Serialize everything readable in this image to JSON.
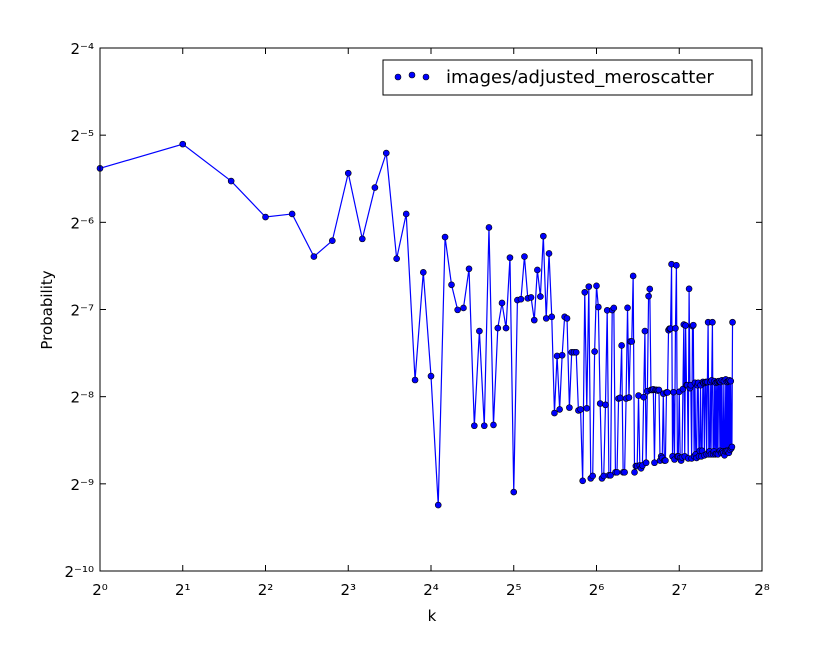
{
  "chart_data": {
    "type": "line",
    "xlabel": "k",
    "ylabel": "Probability",
    "xscale": "log",
    "yscale": "log",
    "log_base": 2,
    "xlim": [
      1,
      256
    ],
    "ylim": [
      0.0009765625,
      0.0625
    ],
    "xticks": [
      {
        "value": 1,
        "label": "2⁰"
      },
      {
        "value": 2,
        "label": "2¹"
      },
      {
        "value": 4,
        "label": "2²"
      },
      {
        "value": 8,
        "label": "2³"
      },
      {
        "value": 16,
        "label": "2⁴"
      },
      {
        "value": 32,
        "label": "2⁵"
      },
      {
        "value": 64,
        "label": "2⁶"
      },
      {
        "value": 128,
        "label": "2⁷"
      },
      {
        "value": 256,
        "label": "2⁸"
      }
    ],
    "yticks": [
      {
        "value": 0.0009765625,
        "label": "2⁻¹⁰"
      },
      {
        "value": 0.001953125,
        "label": "2⁻⁹"
      },
      {
        "value": 0.00390625,
        "label": "2⁻⁸"
      },
      {
        "value": 0.0078125,
        "label": "2⁻⁷"
      },
      {
        "value": 0.015625,
        "label": "2⁻⁶"
      },
      {
        "value": 0.03125,
        "label": "2⁻⁵"
      },
      {
        "value": 0.0625,
        "label": "2⁻⁴"
      }
    ],
    "legend": "upper right",
    "series": [
      {
        "name": "images/adjusted_meroscatter",
        "color": "#0000ff",
        "x": [
          1,
          2,
          3,
          4,
          5,
          6,
          7,
          8,
          9,
          10,
          11,
          12,
          13,
          14,
          15,
          16,
          17,
          18,
          19,
          20,
          21,
          22,
          23,
          24,
          25,
          26,
          27,
          28,
          29,
          30,
          31,
          32,
          33,
          34,
          35,
          36,
          37,
          38,
          39,
          40,
          41,
          42,
          43,
          44,
          45,
          46,
          47,
          48,
          49,
          50,
          51,
          52,
          53,
          54,
          55,
          56,
          57,
          58,
          59,
          60,
          61,
          62,
          63,
          64,
          65,
          66,
          67,
          68,
          69,
          70,
          71,
          72,
          73,
          74,
          75,
          76,
          77,
          78,
          79,
          80,
          81,
          82,
          83,
          84,
          85,
          86,
          87,
          88,
          89,
          90,
          91,
          92,
          93,
          94,
          95,
          96,
          97,
          98,
          99,
          100,
          101,
          102,
          103,
          104,
          105,
          106,
          107,
          108,
          109,
          110,
          111,
          112,
          113,
          114,
          115,
          116,
          117,
          118,
          119,
          120,
          121,
          122,
          123,
          124,
          125,
          126,
          127,
          128,
          129,
          130,
          131,
          132,
          133,
          134,
          135,
          136,
          137,
          138,
          139,
          140,
          141,
          142,
          143,
          144,
          145,
          146,
          147,
          148,
          149,
          150,
          151,
          152,
          153,
          154,
          155,
          156,
          157,
          158,
          159,
          160,
          161,
          162,
          163,
          164,
          165,
          166,
          167,
          168,
          169,
          170,
          171,
          172,
          173,
          174,
          175,
          176,
          177,
          178,
          179,
          180,
          181,
          182,
          183,
          184,
          185,
          186,
          187,
          188,
          189,
          190,
          191,
          192,
          193,
          194,
          195,
          196,
          197,
          198,
          199,
          200
        ],
        "values": [
          0.024,
          0.0291,
          0.0217,
          0.0163,
          0.0167,
          0.0119,
          0.0135,
          0.0231,
          0.0137,
          0.0206,
          0.0271,
          0.0117,
          0.0167,
          0.00446,
          0.0105,
          0.0046,
          0.00165,
          0.0139,
          0.00951,
          0.00779,
          0.00791,
          0.0108,
          0.0031,
          0.00658,
          0.0031,
          0.015,
          0.00312,
          0.00674,
          0.00823,
          0.00674,
          0.0118,
          0.00183,
          0.00842,
          0.00848,
          0.0119,
          0.00854,
          0.0086,
          0.00718,
          0.0107,
          0.00866,
          0.014,
          0.00728,
          0.0122,
          0.00737,
          0.00343,
          0.0054,
          0.00353,
          0.00543,
          0.00737,
          0.00728,
          0.00358,
          0.00556,
          0.00556,
          0.00556,
          0.0035,
          0.00353,
          0.002,
          0.00896,
          0.00356,
          0.00937,
          0.00204,
          0.00208,
          0.00559,
          0.00943,
          0.00797,
          0.0037,
          0.00204,
          0.00208,
          0.00366,
          0.00776,
          0.00209,
          0.00209,
          0.00778,
          0.00791,
          0.00214,
          0.00214,
          0.00385,
          0.00387,
          0.00587,
          0.00214,
          0.00214,
          0.00385,
          0.00792,
          0.00388,
          0.00606,
          0.00606,
          0.0102,
          0.00214,
          0.00225,
          0.00225,
          0.00394,
          0.00226,
          0.00221,
          0.00226,
          0.00389,
          0.00658,
          0.00231,
          0.00408,
          0.00869,
          0.0092,
          0.00412,
          0.00412,
          0.00414,
          0.00231,
          0.00412,
          0.00412,
          0.0041,
          0.00412,
          0.00235,
          0.00243,
          0.0024,
          0.004,
          0.00235,
          0.00235,
          0.00404,
          0.00404,
          0.00663,
          0.00671,
          0.00671,
          0.0112,
          0.00243,
          0.00405,
          0.00237,
          0.00673,
          0.0111,
          0.00243,
          0.00243,
          0.00406,
          0.0024,
          0.00235,
          0.00241,
          0.00415,
          0.00693,
          0.00243,
          0.00688,
          0.00428,
          0.00428,
          0.00239,
          0.00921,
          0.00418,
          0.00428,
          0.00239,
          0.00685,
          0.0069,
          0.00243,
          0.00436,
          0.00247,
          0.0024,
          0.00428,
          0.00436,
          0.00243,
          0.00254,
          0.00428,
          0.00243,
          0.00254,
          0.00439,
          0.00435,
          0.00245,
          0.00436,
          0.00439,
          0.00247,
          0.00439,
          0.00706,
          0.00247,
          0.00253,
          0.00439,
          0.00247,
          0.00445,
          0.00706,
          0.00247,
          0.00253,
          0.00442,
          0.00247,
          0.00436,
          0.00248,
          0.00439,
          0.00247,
          0.00442,
          0.00442,
          0.00254,
          0.00439,
          0.0025,
          0.00445,
          0.00253,
          0.0025,
          0.00442,
          0.00245,
          0.00253,
          0.00448,
          0.00254,
          0.00439,
          0.00254,
          0.00442,
          0.0025,
          0.00445,
          0.00256,
          0.00442,
          0.00259,
          0.00262,
          0.00706
        ]
      }
    ]
  }
}
